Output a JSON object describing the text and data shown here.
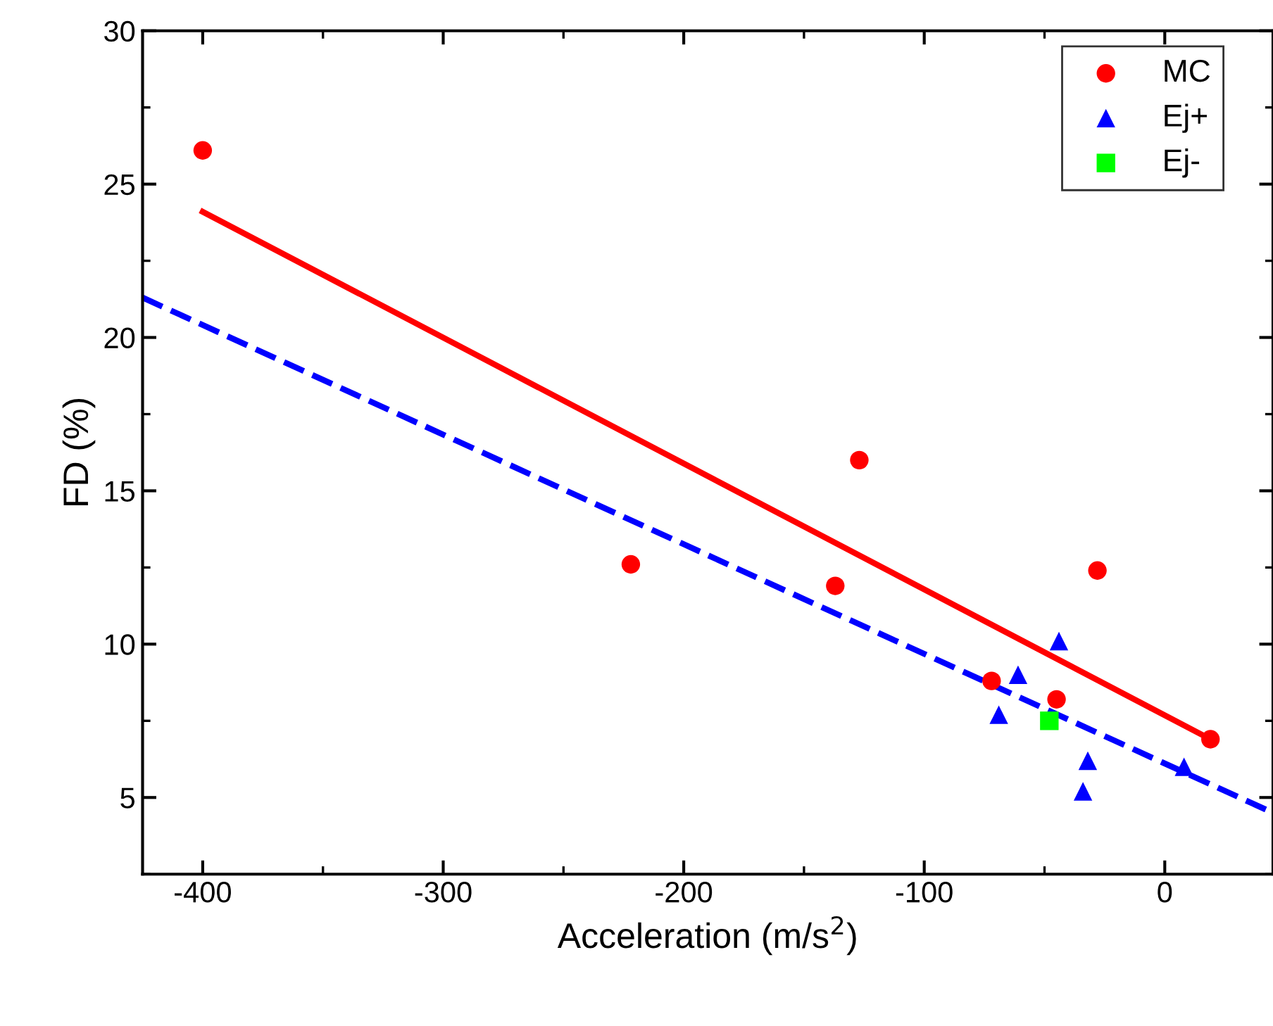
{
  "chart_data": {
    "type": "scatter",
    "xlabel": "Acceleration (m/s$^{2}$)",
    "ylabel": "FD (%)",
    "xlim": [
      -425,
      45
    ],
    "xticks": [
      -400,
      -300,
      -200,
      -100,
      0
    ],
    "ylim": [
      2.5,
      30
    ],
    "yticks": [
      5,
      10,
      15,
      20,
      25,
      30
    ],
    "legend": "top right",
    "grid": false,
    "series": [
      {
        "name": "MC",
        "color": "#ff0000",
        "marker": "circle",
        "x": [
          -400,
          -222,
          -127,
          -137,
          -72,
          -45,
          -28,
          19
        ],
        "values": [
          26.1,
          12.6,
          16.0,
          11.9,
          8.8,
          8.2,
          12.4,
          6.9
        ]
      },
      {
        "name": "Ej+",
        "color": "#0000ff",
        "marker": "triangle",
        "x": [
          -69,
          -61,
          -44,
          -32,
          -34,
          8
        ],
        "values": [
          7.7,
          9.0,
          10.1,
          6.2,
          5.2,
          6.0
        ]
      },
      {
        "name": "Ej-",
        "color": "#00ff00",
        "marker": "square",
        "x": [
          -48
        ],
        "values": [
          7.5
        ]
      },
      {
        "type": "line",
        "color": "#ff0000",
        "line_style": "solid",
        "x": [
          -400,
          19
        ],
        "values": [
          24.1,
          6.9
        ]
      },
      {
        "type": "line",
        "color": "#0000ff",
        "line_style": "dashed",
        "x": [
          -425,
          45
        ],
        "values": [
          21.3,
          4.5
        ]
      }
    ]
  }
}
